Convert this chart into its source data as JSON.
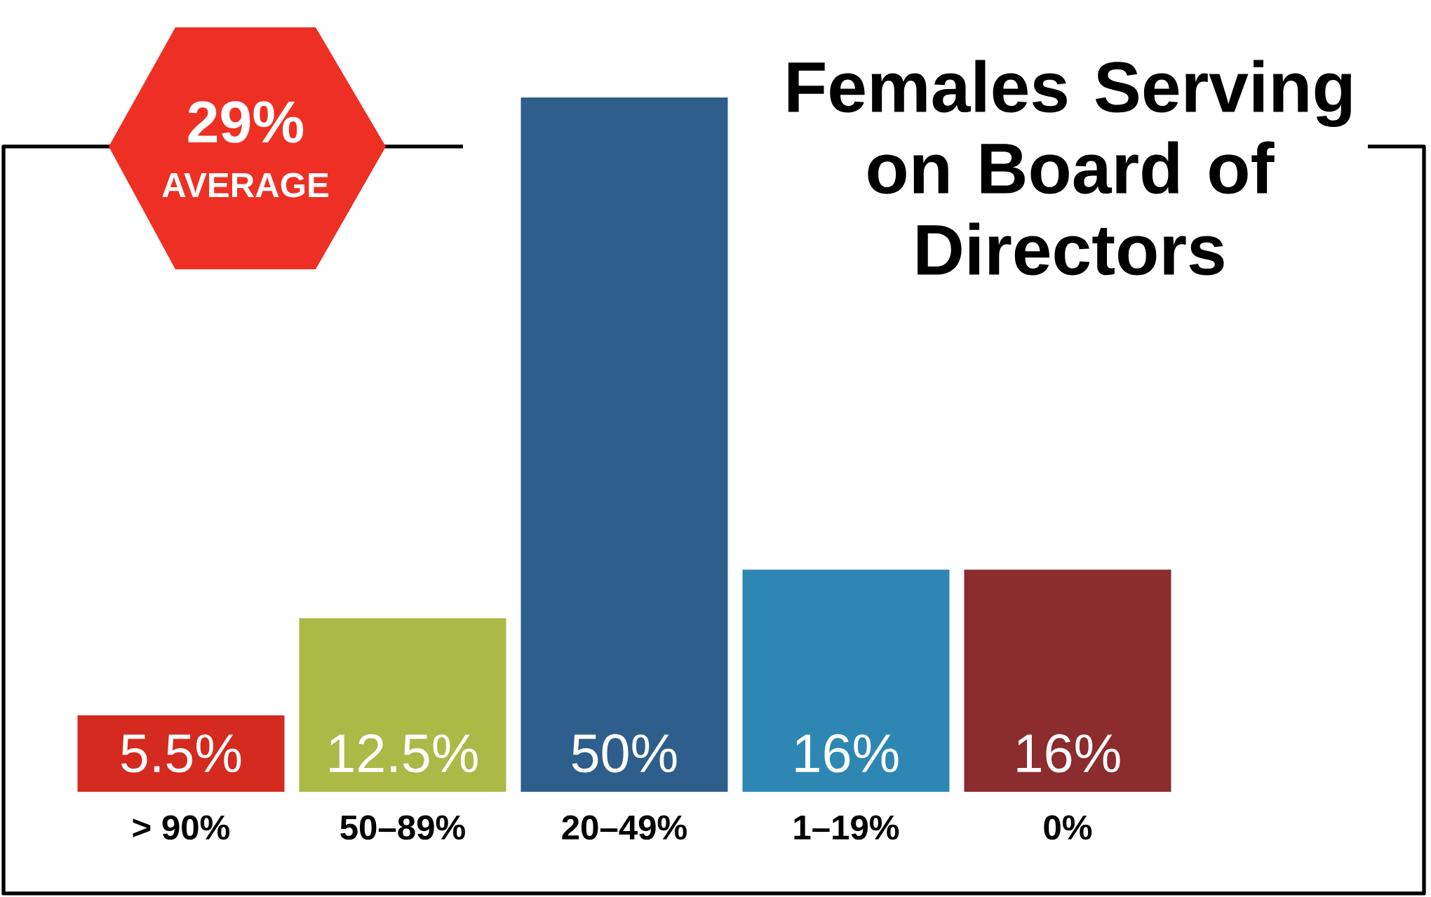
{
  "chart_data": {
    "type": "bar",
    "title": "Females Serving on Board of Directors",
    "categories": [
      "> 90%",
      "50–89%",
      "20–49%",
      "1–19%",
      "0%"
    ],
    "values": [
      5.5,
      12.5,
      50,
      16,
      16
    ],
    "value_labels": [
      "5.5%",
      "12.5%",
      "50%",
      "16%",
      "16%"
    ],
    "colors": [
      "#d42a20",
      "#abb947",
      "#2e5e8b",
      "#2e87b3",
      "#8b2c2f"
    ],
    "annotations": [
      "29%",
      "AVERAGE"
    ]
  }
}
